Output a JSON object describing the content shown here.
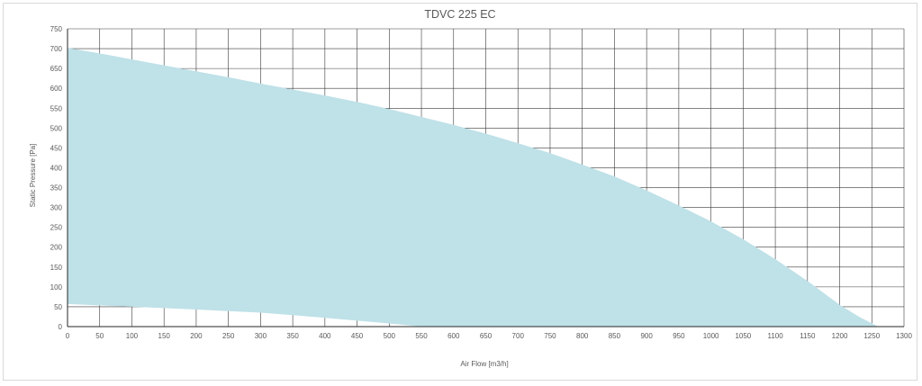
{
  "chart_data": {
    "type": "area",
    "title": "TDVC 225 EC",
    "xlabel": "Air Flow [m3/h]",
    "ylabel": "Static Pressure [Pa]",
    "xlim": [
      0,
      1300
    ],
    "ylim": [
      0,
      750
    ],
    "x_ticks": [
      0,
      50,
      100,
      150,
      200,
      250,
      300,
      350,
      400,
      450,
      500,
      550,
      600,
      650,
      700,
      750,
      800,
      850,
      900,
      950,
      1000,
      1050,
      1100,
      1150,
      1200,
      1250,
      1300
    ],
    "y_ticks": [
      0,
      50,
      100,
      150,
      200,
      250,
      300,
      350,
      400,
      450,
      500,
      550,
      600,
      650,
      700,
      750
    ],
    "grid": true,
    "legend": "none",
    "fill_color": "#bfe1e8",
    "upper_curve": {
      "x": [
        0,
        50,
        100,
        150,
        200,
        250,
        300,
        350,
        400,
        450,
        500,
        550,
        600,
        650,
        700,
        750,
        800,
        850,
        900,
        950,
        1000,
        1050,
        1100,
        1150,
        1200,
        1230,
        1260
      ],
      "y": [
        702,
        688,
        673,
        658,
        643,
        628,
        612,
        597,
        582,
        566,
        548,
        528,
        508,
        486,
        462,
        437,
        408,
        378,
        343,
        305,
        265,
        220,
        170,
        115,
        55,
        25,
        0
      ]
    },
    "lower_curve": {
      "x": [
        0,
        100,
        200,
        300,
        350,
        400,
        450,
        500,
        550
      ],
      "y": [
        57,
        50,
        43,
        35,
        29,
        22,
        15,
        8,
        0
      ]
    }
  }
}
